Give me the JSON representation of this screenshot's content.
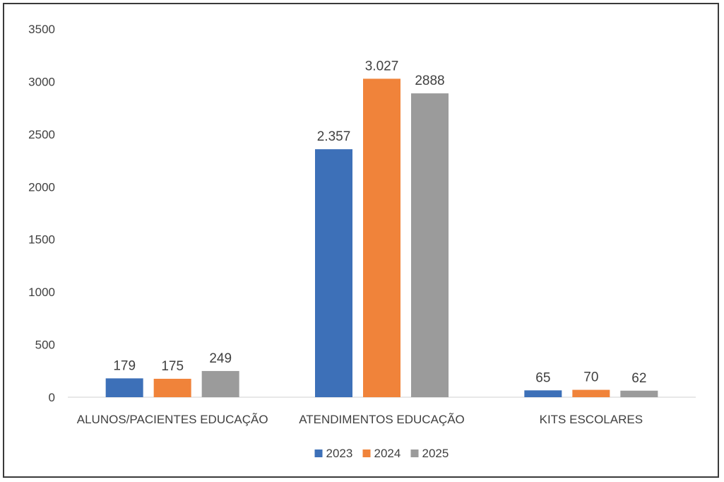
{
  "chart_data": {
    "type": "bar",
    "categories": [
      "ALUNOS/PACIENTES EDUCAÇÃO",
      "ATENDIMENTOS EDUCAÇÃO",
      "KITS ESCOLARES"
    ],
    "series": [
      {
        "name": "2023",
        "values": [
          179,
          2357,
          65
        ],
        "labels": [
          "179",
          "2.357",
          "65"
        ],
        "color": "#3d70b8"
      },
      {
        "name": "2024",
        "values": [
          175,
          3027,
          70
        ],
        "labels": [
          "175",
          "3.027",
          "70"
        ],
        "color": "#f0833a"
      },
      {
        "name": "2025",
        "values": [
          249,
          2888,
          62
        ],
        "labels": [
          "249",
          "2888",
          "62"
        ],
        "color": "#9b9b9b"
      }
    ],
    "yticks": [
      0,
      500,
      1000,
      1500,
      2000,
      2500,
      3000,
      3500
    ],
    "ylim": [
      0,
      3500
    ],
    "grid": false,
    "legend": "bottom-center"
  }
}
